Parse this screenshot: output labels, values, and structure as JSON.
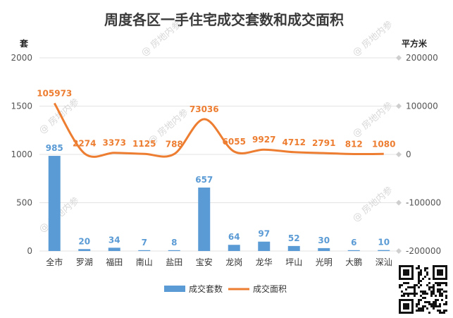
{
  "chart_data": {
    "type": "bar+line",
    "title": "周度各区一手住宅成交套数和成交面积",
    "categories": [
      "全市",
      "罗湖",
      "福田",
      "南山",
      "盐田",
      "宝安",
      "龙岗",
      "龙华",
      "坪山",
      "光明",
      "大鹏",
      "深汕"
    ],
    "series": [
      {
        "name": "成交套数",
        "type": "bar",
        "axis": "left",
        "color": "#5B9BD5",
        "values": [
          985,
          20,
          34,
          7,
          8,
          657,
          64,
          97,
          52,
          30,
          6,
          10
        ]
      },
      {
        "name": "成交面积",
        "type": "line",
        "axis": "right",
        "color": "#ED7D31",
        "values": [
          105973,
          2274,
          3373,
          1125,
          788,
          73036,
          6055,
          9927,
          4712,
          2791,
          812,
          1080
        ]
      }
    ],
    "left_axis": {
      "unit": "套",
      "ylim": [
        0,
        2000
      ],
      "ticks": [
        "0",
        "500",
        "1000",
        "1500",
        "2000"
      ]
    },
    "right_axis": {
      "unit": "平方米",
      "ylim": [
        -200000,
        200000
      ],
      "ticks": [
        "-200000",
        "-100000",
        "0",
        "100000",
        "200000"
      ]
    },
    "legend": {
      "position": "bottom",
      "items": [
        "成交套数",
        "成交面积"
      ]
    },
    "grid": true
  },
  "watermark": "@ 房地内参"
}
